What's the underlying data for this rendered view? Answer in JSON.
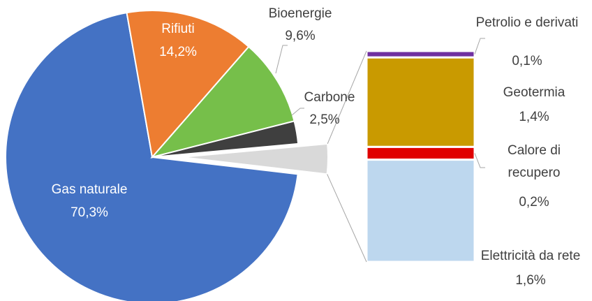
{
  "chart_data": {
    "type": "pie",
    "categories": [
      "Gas naturale",
      "Rifiuti",
      "Bioenergie",
      "Carbone"
    ],
    "values": [
      70.3,
      14.2,
      9.6,
      2.5
    ],
    "value_labels": [
      "70,3%",
      "14,2%",
      "9,6%",
      "2,5%"
    ],
    "colors": [
      "#4472c4",
      "#ed7d31",
      "#76bf4a",
      "#3f3f3f"
    ],
    "breakout": {
      "type": "bar",
      "categories": [
        "Elettricità da rete",
        "Calore di recupero",
        "Geotermia",
        "Petrolio e derivati"
      ],
      "values": [
        1.6,
        0.2,
        1.4,
        0.1
      ],
      "value_labels": [
        "1,6%",
        "0,2%",
        "1,4%",
        "0,1%"
      ],
      "colors": [
        "#bdd7ee",
        "#e00000",
        "#c99a00",
        "#7030a0"
      ]
    }
  }
}
